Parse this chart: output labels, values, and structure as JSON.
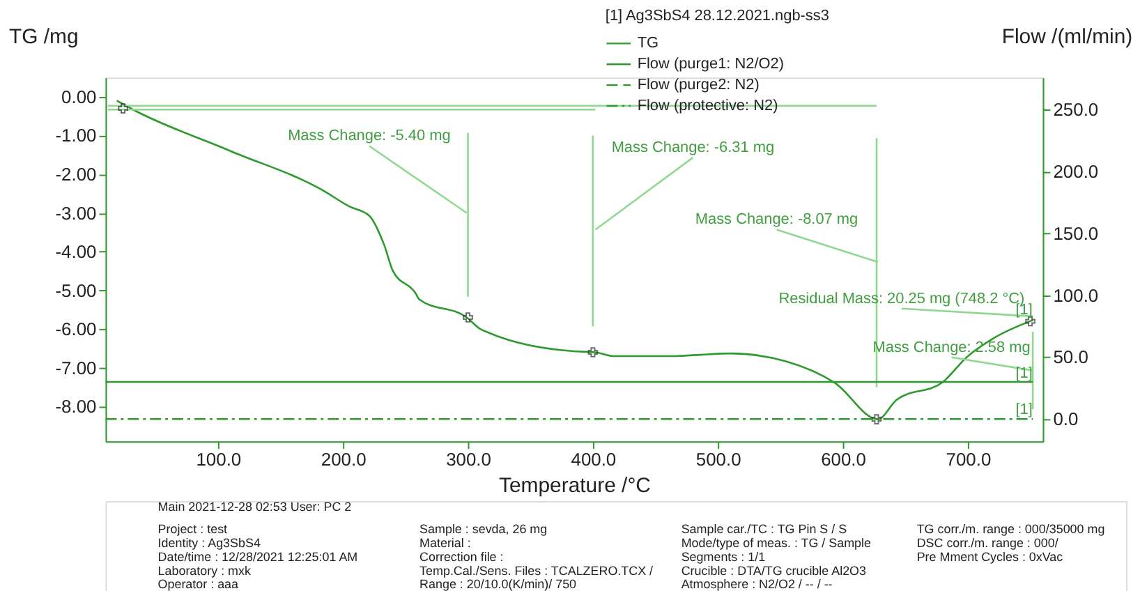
{
  "chart_data": {
    "type": "line",
    "legend_title": "[1] Ag3SbS4   28.12.2021.ngb-ss3",
    "xlabel": "Temperature /°C",
    "ylabel": "TG /mg",
    "y2label": "Flow /(ml/min)",
    "xlim": [
      10,
      760
    ],
    "xticks": [
      {
        "value": 100,
        "label": "100.0"
      },
      {
        "value": 200,
        "label": "200.0"
      },
      {
        "value": 300,
        "label": "300.0"
      },
      {
        "value": 400,
        "label": "400.0"
      },
      {
        "value": 500,
        "label": "500.0"
      },
      {
        "value": 600,
        "label": "600.0"
      },
      {
        "value": 700,
        "label": "700.0"
      }
    ],
    "ylim": [
      -8.9,
      0.5
    ],
    "yticks": [
      {
        "value": 0,
        "label": "0.00"
      },
      {
        "value": -1,
        "label": "-1.00"
      },
      {
        "value": -2,
        "label": "-2.00"
      },
      {
        "value": -3,
        "label": "-3.00"
      },
      {
        "value": -4,
        "label": "-4.00"
      },
      {
        "value": -5,
        "label": "-5.00"
      },
      {
        "value": -6,
        "label": "-6.00"
      },
      {
        "value": -7,
        "label": "-7.00"
      },
      {
        "value": -8,
        "label": "-8.00"
      }
    ],
    "y2lim": [
      -18,
      276
    ],
    "y2ticks": [
      {
        "value": 0,
        "label": "0.0"
      },
      {
        "value": 50,
        "label": "50.0"
      },
      {
        "value": 100,
        "label": "100.0"
      },
      {
        "value": 150,
        "label": "150.0"
      },
      {
        "value": 200,
        "label": "200.0"
      },
      {
        "value": 250,
        "label": "250.0"
      }
    ],
    "grid": false,
    "legend": "top",
    "series": [
      {
        "name": "TG",
        "color": "#2e9a2e",
        "line_style": "solid",
        "x": [
          19,
          32,
          110,
          183,
          205,
          221,
          233,
          240,
          258,
          261,
          299,
          310,
          317,
          383,
          402,
          417,
          461,
          510,
          554,
          594,
          628,
          643,
          680,
          699,
          721,
          752
        ],
        "values": [
          -0.1,
          -0.33,
          -1.4,
          -2.4,
          -2.83,
          -3.07,
          -3.83,
          -4.5,
          -5.07,
          -5.23,
          -5.7,
          -6.0,
          -6.1,
          -6.57,
          -6.6,
          -6.7,
          -6.7,
          -6.63,
          -6.83,
          -7.4,
          -8.33,
          -7.83,
          -7.37,
          -6.73,
          -6.23,
          -5.77
        ]
      },
      {
        "name": "Flow (purge1: N2/O2)",
        "axis": "y2",
        "color": "#2e9a2e",
        "line_style": "solid",
        "x": [
          10,
          752
        ],
        "values": [
          30,
          30
        ]
      },
      {
        "name": "Flow (purge2: N2)",
        "axis": "y2",
        "color": "#2e9a2e",
        "line_style": "dashed"
      },
      {
        "name": "Flow (protective: N2)",
        "axis": "y2",
        "color": "#2e9a2e",
        "line_style": "dashdot",
        "x": [
          10,
          752
        ],
        "values": [
          0,
          0
        ]
      },
      {
        "color": "#8fd88f",
        "line_style": "solid",
        "x": [
          12,
          627
        ],
        "values": [
          -0.23,
          -0.23
        ]
      },
      {
        "color": "#8fd88f",
        "line_style": "solid",
        "x": [
          12,
          402
        ],
        "values": [
          -0.33,
          -0.33
        ]
      },
      {
        "color": "#8fd88f",
        "line_style": "solid",
        "x": [
          300,
          300
        ],
        "values": [
          -0.93,
          -5.17
        ]
      },
      {
        "color": "#8fd88f",
        "line_style": "solid",
        "x": [
          400,
          400
        ],
        "values": [
          -1.0,
          -5.93
        ]
      },
      {
        "color": "#8fd88f",
        "line_style": "solid",
        "x": [
          627,
          627
        ],
        "values": [
          -1.07,
          -7.5
        ]
      },
      {
        "color": "#8fd88f",
        "line_style": "solid",
        "x": [
          752,
          752
        ],
        "values": [
          -6.07,
          -8.07
        ]
      },
      {
        "color": "#8fd88f",
        "line_style": "solid",
        "x": [
          221,
          299
        ],
        "values": [
          -1.27,
          -3.0
        ]
      },
      {
        "color": "#8fd88f",
        "line_style": "solid",
        "x": [
          480,
          402
        ],
        "values": [
          -1.57,
          -3.43
        ]
      },
      {
        "color": "#8fd88f",
        "line_style": "solid",
        "x": [
          547,
          628
        ],
        "values": [
          -3.43,
          -4.27
        ]
      },
      {
        "color": "#8fd88f",
        "line_style": "solid",
        "x": [
          647,
          752
        ],
        "values": [
          -5.47,
          -5.67
        ]
      },
      {
        "color": "#8fd88f",
        "line_style": "solid",
        "x": [
          687,
          752
        ],
        "values": [
          -6.73,
          -7.07
        ]
      },
      {
        "type": "scatter",
        "marker": "cross",
        "color": "#333333",
        "x": [
          24,
          300,
          400,
          627,
          750
        ],
        "values": [
          -0.3,
          -5.7,
          -6.6,
          -8.33,
          -5.8
        ]
      }
    ],
    "annotations": [
      {
        "text": "Mass Change: -5.40 mg",
        "x": 221,
        "y": -1.27
      },
      {
        "text": "Mass Change: -6.31 mg",
        "x": 480,
        "y": -1.57
      },
      {
        "text": "Mass Change: -8.07 mg",
        "x": 547,
        "y": -3.43
      },
      {
        "text": "Residual Mass: 20.25 mg (748.2 °C)",
        "x": 647,
        "y": -5.47
      },
      {
        "text": "Mass Change: 2.58 mg",
        "x": 687,
        "y": -6.73
      },
      {
        "text": "[1]",
        "x": 745,
        "y": -5.77
      },
      {
        "text": "[1]",
        "x": 745,
        "y": -7.4
      },
      {
        "text": "[1]",
        "x": 745,
        "y": -8.33
      },
      "Main   2021-12-28 02:53   User: PC 2",
      "Project :   test",
      "Identity :   Ag3SbS4",
      "Date/time :   12/28/2021 12:25:01 AM",
      "Laboratory :   mxk",
      "Operator :   aaa",
      "Sample :   sevda, 26 mg",
      "Material :",
      "Correction file :",
      "Temp.Cal./Sens. Files :   TCALZERO.TCX /",
      "Range :   20/10.0(K/min)/ 750",
      "Sample car./TC :   TG Pin S / S",
      "Mode/type of meas. :   TG / Sample",
      "Segments :   1/1",
      "Crucible :   DTA/TG crucible Al2O3",
      "Atmosphere :   N2/O2 / -- / --",
      "TG corr./m. range :   000/35000 mg",
      "DSC corr./m. range :   000/",
      "Pre Mment Cycles :   0xVac"
    ]
  }
}
